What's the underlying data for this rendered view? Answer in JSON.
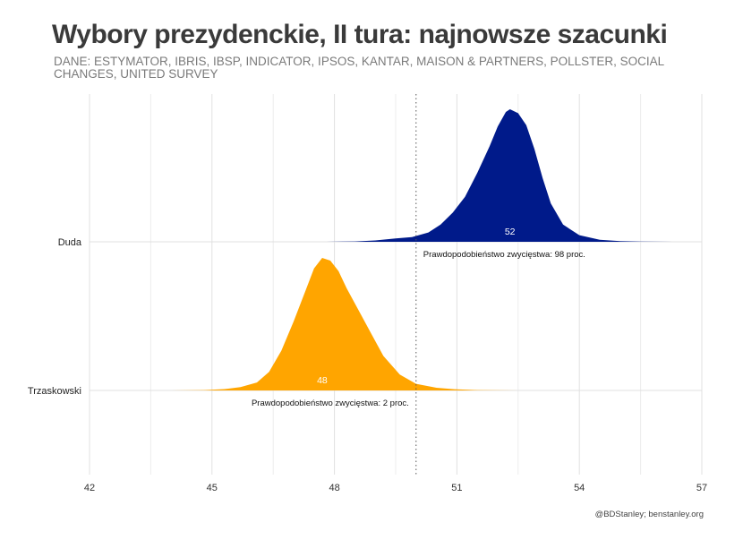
{
  "title": "Wybory prezydenckie, II tura: najnowsze szacunki",
  "subtitle": "DANE: ESTYMATOR, IBRIS, IBSP, INDICATOR, IPSOS, KANTAR, MAISON & PARTNERS, POLLSTER, SOCIAL CHANGES, UNITED SURVEY",
  "credit": "@BDStanley; benstanley.org",
  "chart_data": {
    "type": "area",
    "subtype": "ridgeline-density",
    "xlim": [
      42,
      57
    ],
    "x_ticks": [
      "42",
      "45",
      "48",
      "51",
      "54",
      "57"
    ],
    "threshold": 50,
    "grid": true,
    "series": [
      {
        "name": "Duda",
        "color": "#001a8a",
        "median": 52.3,
        "median_label": "52",
        "probability_label": "Prawdopodobieństwo zwycięstwa: 98 proc.",
        "density_points": [
          [
            47.8,
            0
          ],
          [
            48.5,
            0.003
          ],
          [
            49.0,
            0.01
          ],
          [
            49.5,
            0.025
          ],
          [
            49.9,
            0.035
          ],
          [
            50.3,
            0.07
          ],
          [
            50.6,
            0.13
          ],
          [
            50.9,
            0.22
          ],
          [
            51.2,
            0.34
          ],
          [
            51.5,
            0.52
          ],
          [
            51.8,
            0.72
          ],
          [
            52.0,
            0.87
          ],
          [
            52.2,
            0.98
          ],
          [
            52.3,
            1.0
          ],
          [
            52.5,
            0.97
          ],
          [
            52.7,
            0.88
          ],
          [
            52.9,
            0.7
          ],
          [
            53.1,
            0.48
          ],
          [
            53.3,
            0.29
          ],
          [
            53.6,
            0.13
          ],
          [
            54.0,
            0.05
          ],
          [
            54.5,
            0.015
          ],
          [
            55.0,
            0.005
          ],
          [
            55.5,
            0.002
          ],
          [
            56.3,
            0
          ]
        ]
      },
      {
        "name": "Trzaskowski",
        "color": "#ffa500",
        "median": 47.7,
        "median_label": "48",
        "probability_label": "Prawdopodobieństwo zwycięstwa: 2 proc.",
        "density_points": [
          [
            44.0,
            0
          ],
          [
            44.8,
            0.003
          ],
          [
            45.3,
            0.01
          ],
          [
            45.7,
            0.025
          ],
          [
            46.1,
            0.06
          ],
          [
            46.4,
            0.14
          ],
          [
            46.7,
            0.3
          ],
          [
            47.0,
            0.52
          ],
          [
            47.3,
            0.76
          ],
          [
            47.5,
            0.92
          ],
          [
            47.7,
            1.0
          ],
          [
            47.9,
            0.98
          ],
          [
            48.1,
            0.9
          ],
          [
            48.3,
            0.77
          ],
          [
            48.6,
            0.6
          ],
          [
            48.9,
            0.43
          ],
          [
            49.2,
            0.26
          ],
          [
            49.6,
            0.12
          ],
          [
            50.0,
            0.05
          ],
          [
            50.5,
            0.02
          ],
          [
            51.0,
            0.008
          ],
          [
            51.5,
            0.003
          ],
          [
            52.5,
            0
          ]
        ]
      }
    ]
  }
}
